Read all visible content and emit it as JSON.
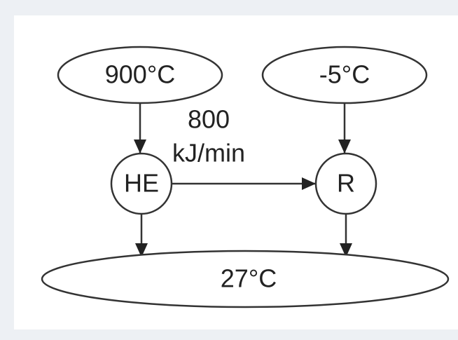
{
  "nodes": [
    {
      "label": "900°C"
    },
    {
      "label": "-5°C"
    },
    {
      "label": "HE"
    },
    {
      "label": "R"
    },
    {
      "label": "27°C"
    }
  ],
  "edge_label": {
    "lines": [
      "800",
      "kJ/min"
    ]
  }
}
